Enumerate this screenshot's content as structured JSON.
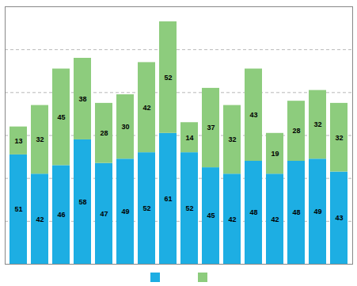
{
  "chart_data": {
    "type": "bar",
    "categories": [
      null,
      null,
      null,
      null,
      null,
      null,
      null,
      null,
      null,
      null,
      null,
      null,
      null,
      null,
      null,
      null
    ],
    "series": [
      {
        "color": "#1daee3",
        "values": [
          51,
          42,
          46,
          58,
          47,
          49,
          52,
          61,
          52,
          45,
          42,
          48,
          42,
          48,
          49,
          43
        ]
      },
      {
        "color": "#8dcc7d",
        "values": [
          13,
          32,
          45,
          38,
          28,
          30,
          42,
          52,
          14,
          37,
          32,
          43,
          19,
          28,
          32,
          32
        ]
      }
    ],
    "stacked": true,
    "ylim": [
      0,
      120
    ],
    "yticks": [
      20,
      40,
      60,
      80,
      100
    ],
    "grid": true,
    "data_labels": true,
    "tick_labels": false,
    "legend": "bottom"
  }
}
